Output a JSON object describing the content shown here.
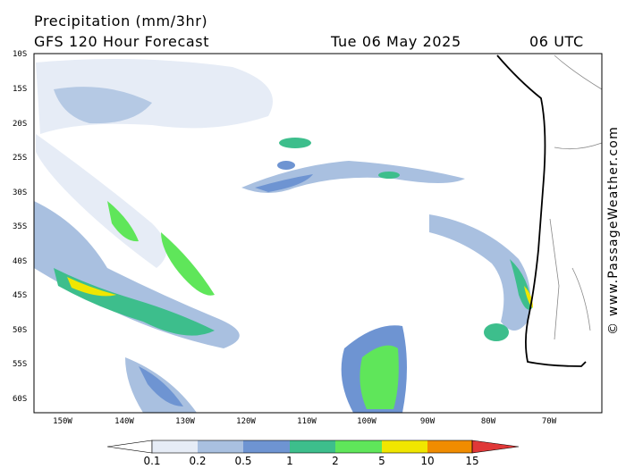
{
  "header": {
    "title": "Precipitation (mm/3hr)",
    "subtitle": "GFS 120 Hour Forecast",
    "date": "Tue 06 May 2025",
    "time": "06 UTC"
  },
  "watermark": "© www.PassageWeather.com",
  "axes": {
    "lat_labels": [
      "10S",
      "15S",
      "20S",
      "25S",
      "30S",
      "35S",
      "40S",
      "45S",
      "50S",
      "55S",
      "60S"
    ],
    "lon_labels": [
      "150W",
      "140W",
      "130W",
      "120W",
      "110W",
      "100W",
      "90W",
      "80W",
      "70W"
    ]
  },
  "colorbar": {
    "labels": [
      "0.1",
      "0.2",
      "0.5",
      "1",
      "2",
      "5",
      "10",
      "15"
    ],
    "colors": [
      "#ffffff",
      "#e6ecf6",
      "#a9c0e0",
      "#6e94d2",
      "#3dbe8c",
      "#5fe65a",
      "#f0e600",
      "#f08c00",
      "#e03838"
    ]
  }
}
